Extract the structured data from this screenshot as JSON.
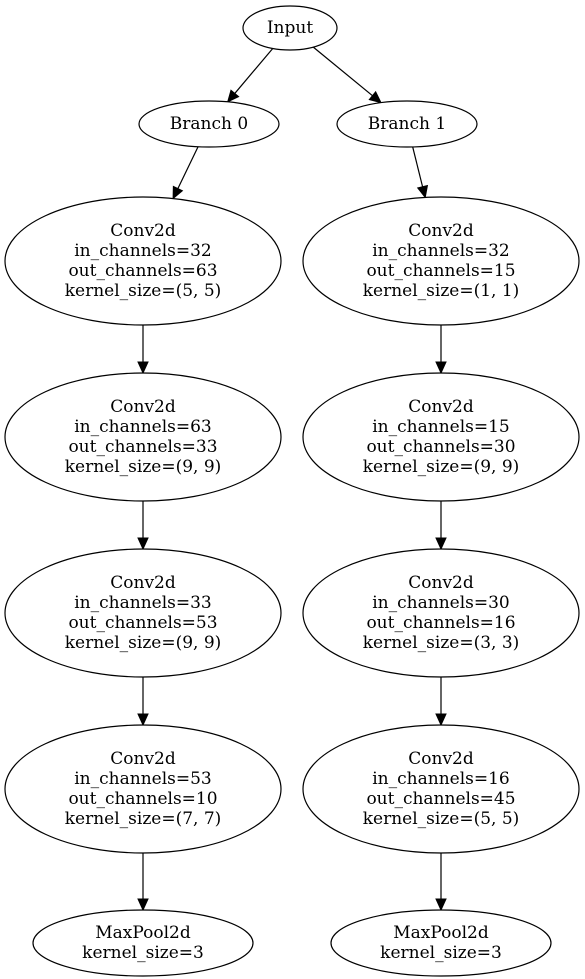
{
  "nodes": {
    "input": {
      "lines": [
        "Input"
      ]
    },
    "branch0": {
      "lines": [
        "Branch 0"
      ]
    },
    "branch1": {
      "lines": [
        "Branch 1"
      ]
    },
    "b0_conv1": {
      "lines": [
        "Conv2d",
        "in_channels=32",
        "out_channels=63",
        "kernel_size=(5, 5)"
      ]
    },
    "b0_conv2": {
      "lines": [
        "Conv2d",
        "in_channels=63",
        "out_channels=33",
        "kernel_size=(9, 9)"
      ]
    },
    "b0_conv3": {
      "lines": [
        "Conv2d",
        "in_channels=33",
        "out_channels=53",
        "kernel_size=(9, 9)"
      ]
    },
    "b0_conv4": {
      "lines": [
        "Conv2d",
        "in_channels=53",
        "out_channels=10",
        "kernel_size=(7, 7)"
      ]
    },
    "b0_pool": {
      "lines": [
        "MaxPool2d",
        "kernel_size=3"
      ]
    },
    "b1_conv1": {
      "lines": [
        "Conv2d",
        "in_channels=32",
        "out_channels=15",
        "kernel_size=(1, 1)"
      ]
    },
    "b1_conv2": {
      "lines": [
        "Conv2d",
        "in_channels=15",
        "out_channels=30",
        "kernel_size=(9, 9)"
      ]
    },
    "b1_conv3": {
      "lines": [
        "Conv2d",
        "in_channels=30",
        "out_channels=16",
        "kernel_size=(3, 3)"
      ]
    },
    "b1_conv4": {
      "lines": [
        "Conv2d",
        "in_channels=16",
        "out_channels=45",
        "kernel_size=(5, 5)"
      ]
    },
    "b1_pool": {
      "lines": [
        "MaxPool2d",
        "kernel_size=3"
      ]
    }
  },
  "edges": [
    {
      "from": "input",
      "to": "branch0"
    },
    {
      "from": "input",
      "to": "branch1"
    },
    {
      "from": "branch0",
      "to": "b0_conv1"
    },
    {
      "from": "b0_conv1",
      "to": "b0_conv2"
    },
    {
      "from": "b0_conv2",
      "to": "b0_conv3"
    },
    {
      "from": "b0_conv3",
      "to": "b0_conv4"
    },
    {
      "from": "b0_conv4",
      "to": "b0_pool"
    },
    {
      "from": "branch1",
      "to": "b1_conv1"
    },
    {
      "from": "b1_conv1",
      "to": "b1_conv2"
    },
    {
      "from": "b1_conv2",
      "to": "b1_conv3"
    },
    {
      "from": "b1_conv3",
      "to": "b1_conv4"
    },
    {
      "from": "b1_conv4",
      "to": "b1_pool"
    }
  ]
}
